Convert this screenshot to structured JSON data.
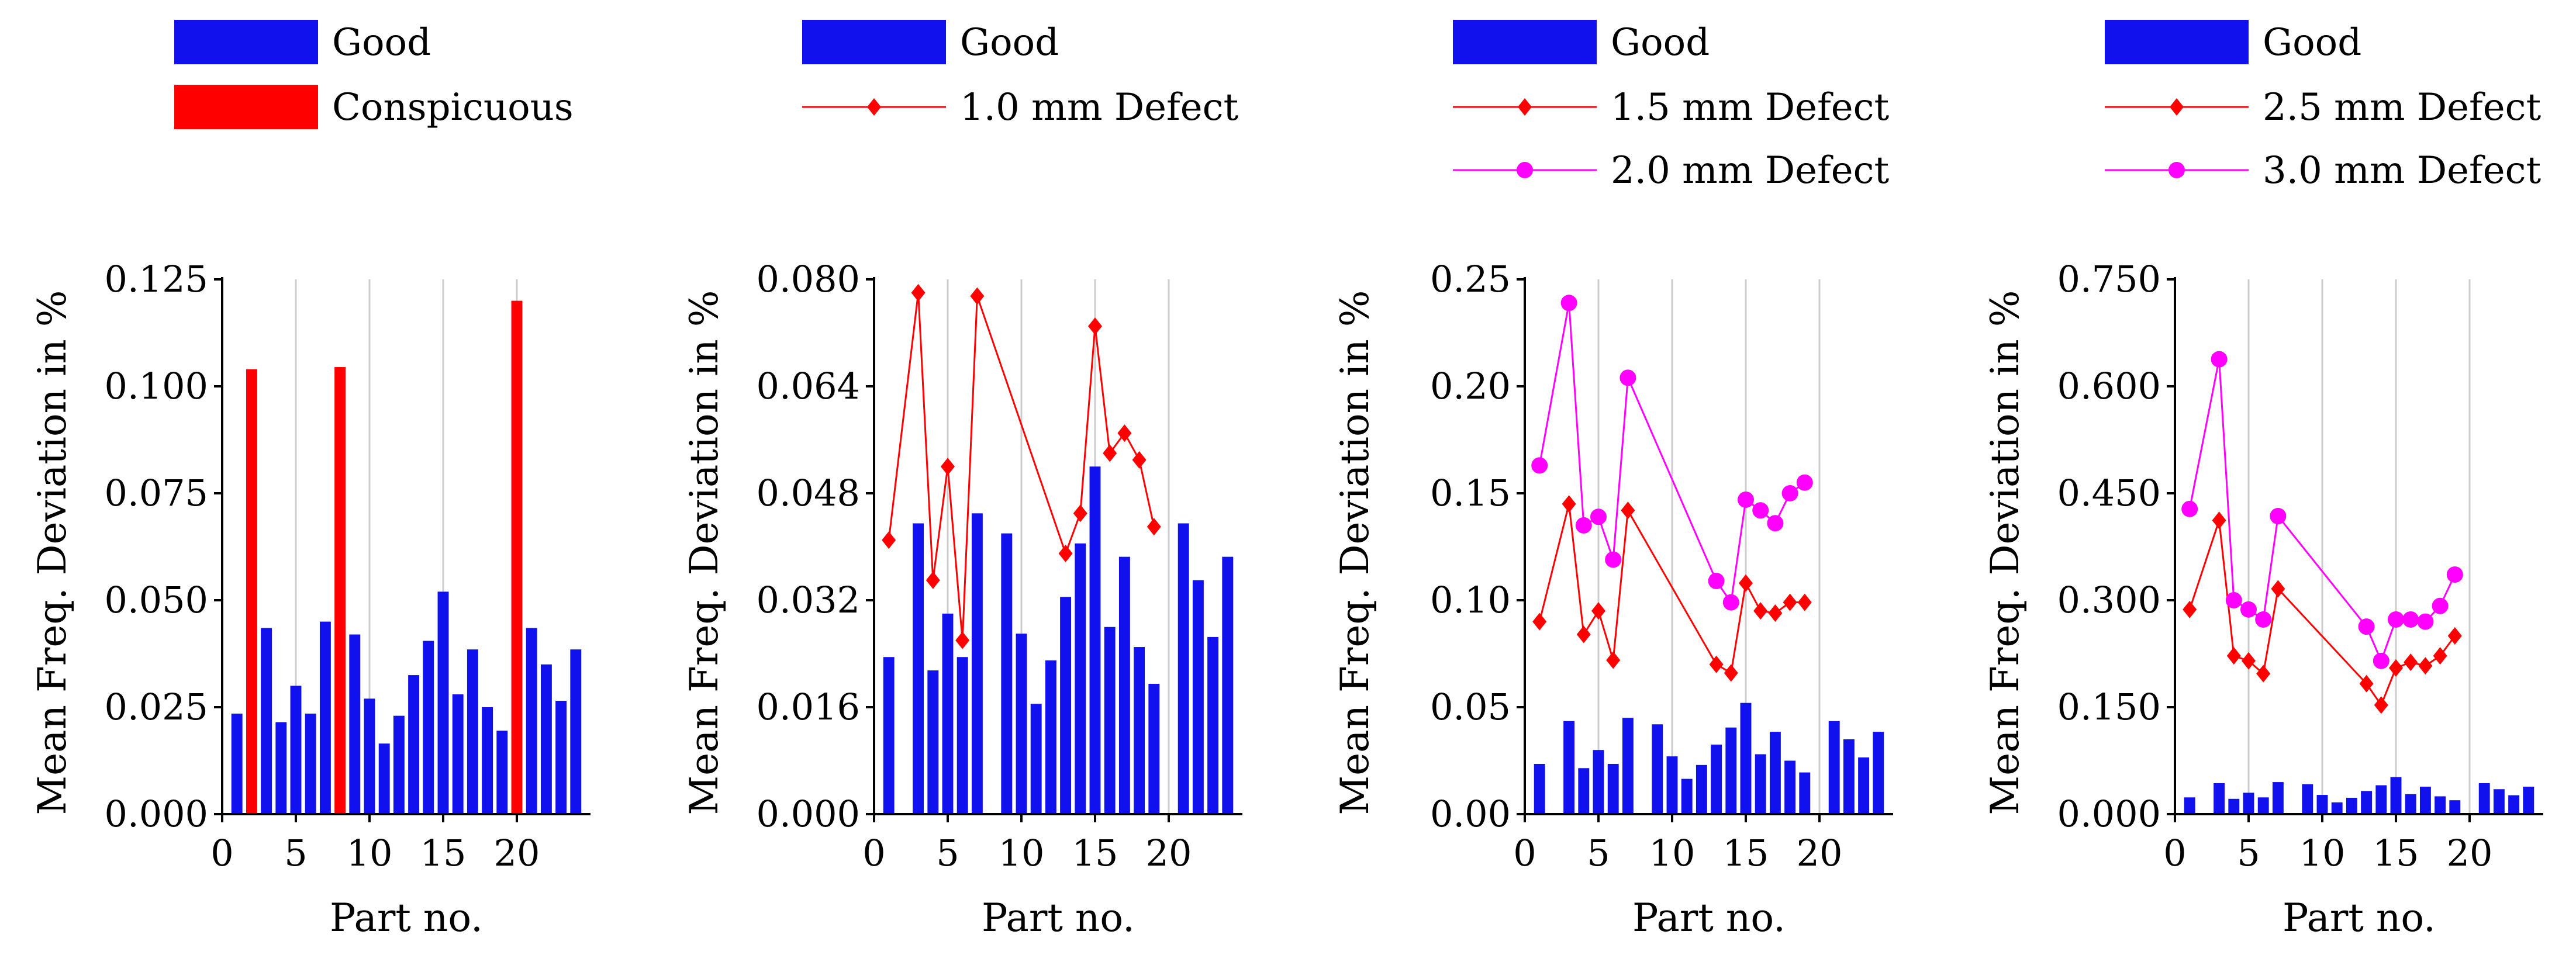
{
  "colors": {
    "good": "#1111ee",
    "conspicuous": "#ff0000",
    "defect_small": "#ff0000",
    "defect_large": "#ff00ff",
    "grid": "#cccccc",
    "axis": "#000000"
  },
  "chart_data": [
    {
      "type": "bar",
      "title": "",
      "xlabel": "Part no.",
      "ylabel": "Mean Freq. Deviation in %",
      "xlim": [
        0,
        25
      ],
      "ylim": [
        0,
        0.125
      ],
      "xticks": [
        0,
        5,
        10,
        15,
        20
      ],
      "yticks": [
        0,
        0.025,
        0.05,
        0.075,
        0.1,
        0.125
      ],
      "ytick_labels": [
        "0.000",
        "0.025",
        "0.050",
        "0.075",
        "0.100",
        "0.125"
      ],
      "xtick_labels": [
        "0",
        "5",
        "10",
        "15",
        "20"
      ],
      "grid": "vertical",
      "legend": [
        {
          "label": "Good",
          "kind": "bar",
          "color_key": "good"
        },
        {
          "label": "Conspicuous",
          "kind": "bar",
          "color_key": "conspicuous"
        }
      ],
      "bars": [
        {
          "x": 1,
          "value": 0.0235,
          "series": "Good"
        },
        {
          "x": 2,
          "value": 0.104,
          "series": "Conspicuous"
        },
        {
          "x": 3,
          "value": 0.0435,
          "series": "Good"
        },
        {
          "x": 4,
          "value": 0.0215,
          "series": "Good"
        },
        {
          "x": 5,
          "value": 0.03,
          "series": "Good"
        },
        {
          "x": 6,
          "value": 0.0235,
          "series": "Good"
        },
        {
          "x": 7,
          "value": 0.045,
          "series": "Good"
        },
        {
          "x": 8,
          "value": 0.1045,
          "series": "Conspicuous"
        },
        {
          "x": 9,
          "value": 0.042,
          "series": "Good"
        },
        {
          "x": 10,
          "value": 0.027,
          "series": "Good"
        },
        {
          "x": 11,
          "value": 0.0165,
          "series": "Good"
        },
        {
          "x": 12,
          "value": 0.023,
          "series": "Good"
        },
        {
          "x": 13,
          "value": 0.0325,
          "series": "Good"
        },
        {
          "x": 14,
          "value": 0.0405,
          "series": "Good"
        },
        {
          "x": 15,
          "value": 0.052,
          "series": "Good"
        },
        {
          "x": 16,
          "value": 0.028,
          "series": "Good"
        },
        {
          "x": 17,
          "value": 0.0385,
          "series": "Good"
        },
        {
          "x": 18,
          "value": 0.025,
          "series": "Good"
        },
        {
          "x": 19,
          "value": 0.0195,
          "series": "Good"
        },
        {
          "x": 20,
          "value": 0.12,
          "series": "Conspicuous"
        },
        {
          "x": 21,
          "value": 0.0435,
          "series": "Good"
        },
        {
          "x": 22,
          "value": 0.035,
          "series": "Good"
        },
        {
          "x": 23,
          "value": 0.0265,
          "series": "Good"
        },
        {
          "x": 24,
          "value": 0.0385,
          "series": "Good"
        }
      ],
      "series": []
    },
    {
      "type": "bar",
      "title": "",
      "xlabel": "Part no.",
      "ylabel": "Mean Freq. Deviation in %",
      "xlim": [
        0,
        25
      ],
      "ylim": [
        0,
        0.08
      ],
      "xticks": [
        0,
        5,
        10,
        15,
        20
      ],
      "yticks": [
        0,
        0.016,
        0.032,
        0.048,
        0.064,
        0.08
      ],
      "ytick_labels": [
        "0.000",
        "0.016",
        "0.032",
        "0.048",
        "0.064",
        "0.080"
      ],
      "xtick_labels": [
        "0",
        "5",
        "10",
        "15",
        "20"
      ],
      "grid": "vertical",
      "legend": [
        {
          "label": "Good",
          "kind": "bar",
          "color_key": "good"
        },
        {
          "label": "1.0 mm Defect",
          "kind": "line-diamond",
          "color_key": "defect_small"
        }
      ],
      "bars": [
        {
          "x": 1,
          "value": 0.0235,
          "series": "Good"
        },
        {
          "x": 3,
          "value": 0.0435,
          "series": "Good"
        },
        {
          "x": 4,
          "value": 0.0215,
          "series": "Good"
        },
        {
          "x": 5,
          "value": 0.03,
          "series": "Good"
        },
        {
          "x": 6,
          "value": 0.0235,
          "series": "Good"
        },
        {
          "x": 7,
          "value": 0.045,
          "series": "Good"
        },
        {
          "x": 9,
          "value": 0.042,
          "series": "Good"
        },
        {
          "x": 10,
          "value": 0.027,
          "series": "Good"
        },
        {
          "x": 11,
          "value": 0.0165,
          "series": "Good"
        },
        {
          "x": 12,
          "value": 0.023,
          "series": "Good"
        },
        {
          "x": 13,
          "value": 0.0325,
          "series": "Good"
        },
        {
          "x": 14,
          "value": 0.0405,
          "series": "Good"
        },
        {
          "x": 15,
          "value": 0.052,
          "series": "Good"
        },
        {
          "x": 16,
          "value": 0.028,
          "series": "Good"
        },
        {
          "x": 17,
          "value": 0.0385,
          "series": "Good"
        },
        {
          "x": 18,
          "value": 0.025,
          "series": "Good"
        },
        {
          "x": 19,
          "value": 0.0195,
          "series": "Good"
        },
        {
          "x": 21,
          "value": 0.0435,
          "series": "Good"
        },
        {
          "x": 22,
          "value": 0.035,
          "series": "Good"
        },
        {
          "x": 23,
          "value": 0.0265,
          "series": "Good"
        },
        {
          "x": 24,
          "value": 0.0385,
          "series": "Good"
        }
      ],
      "series": [
        {
          "name": "1.0 mm Defect",
          "marker": "diamond",
          "color_key": "defect_small",
          "x": [
            1,
            3,
            4,
            5,
            6,
            7,
            13,
            14,
            15,
            16,
            17,
            18,
            19
          ],
          "values": [
            0.041,
            0.078,
            0.035,
            0.052,
            0.026,
            0.0775,
            0.039,
            0.045,
            0.073,
            0.054,
            0.057,
            0.053,
            0.043
          ]
        }
      ]
    },
    {
      "type": "bar",
      "title": "",
      "xlabel": "Part no.",
      "ylabel": "Mean Freq. Deviation in %",
      "xlim": [
        0,
        25
      ],
      "ylim": [
        0,
        0.25
      ],
      "xticks": [
        0,
        5,
        10,
        15,
        20
      ],
      "yticks": [
        0,
        0.05,
        0.1,
        0.15,
        0.2,
        0.25
      ],
      "ytick_labels": [
        "0.00",
        "0.05",
        "0.10",
        "0.15",
        "0.20",
        "0.25"
      ],
      "xtick_labels": [
        "0",
        "5",
        "10",
        "15",
        "20"
      ],
      "grid": "vertical",
      "legend": [
        {
          "label": "Good",
          "kind": "bar",
          "color_key": "good"
        },
        {
          "label": "1.5 mm Defect",
          "kind": "line-diamond",
          "color_key": "defect_small"
        },
        {
          "label": "2.0 mm Defect",
          "kind": "line-circle",
          "color_key": "defect_large"
        }
      ],
      "bars": [
        {
          "x": 1,
          "value": 0.0235,
          "series": "Good"
        },
        {
          "x": 3,
          "value": 0.0435,
          "series": "Good"
        },
        {
          "x": 4,
          "value": 0.0215,
          "series": "Good"
        },
        {
          "x": 5,
          "value": 0.03,
          "series": "Good"
        },
        {
          "x": 6,
          "value": 0.0235,
          "series": "Good"
        },
        {
          "x": 7,
          "value": 0.045,
          "series": "Good"
        },
        {
          "x": 9,
          "value": 0.042,
          "series": "Good"
        },
        {
          "x": 10,
          "value": 0.027,
          "series": "Good"
        },
        {
          "x": 11,
          "value": 0.0165,
          "series": "Good"
        },
        {
          "x": 12,
          "value": 0.023,
          "series": "Good"
        },
        {
          "x": 13,
          "value": 0.0325,
          "series": "Good"
        },
        {
          "x": 14,
          "value": 0.0405,
          "series": "Good"
        },
        {
          "x": 15,
          "value": 0.052,
          "series": "Good"
        },
        {
          "x": 16,
          "value": 0.028,
          "series": "Good"
        },
        {
          "x": 17,
          "value": 0.0385,
          "series": "Good"
        },
        {
          "x": 18,
          "value": 0.025,
          "series": "Good"
        },
        {
          "x": 19,
          "value": 0.0195,
          "series": "Good"
        },
        {
          "x": 21,
          "value": 0.0435,
          "series": "Good"
        },
        {
          "x": 22,
          "value": 0.035,
          "series": "Good"
        },
        {
          "x": 23,
          "value": 0.0265,
          "series": "Good"
        },
        {
          "x": 24,
          "value": 0.0385,
          "series": "Good"
        }
      ],
      "series": [
        {
          "name": "1.5 mm Defect",
          "marker": "diamond",
          "color_key": "defect_small",
          "x": [
            1,
            3,
            4,
            5,
            6,
            7,
            13,
            14,
            15,
            16,
            17,
            18,
            19
          ],
          "values": [
            0.09,
            0.145,
            0.084,
            0.095,
            0.072,
            0.142,
            0.07,
            0.066,
            0.108,
            0.095,
            0.094,
            0.099,
            0.099
          ]
        },
        {
          "name": "2.0 mm Defect",
          "marker": "circle",
          "color_key": "defect_large",
          "x": [
            1,
            3,
            4,
            5,
            6,
            7,
            13,
            14,
            15,
            16,
            17,
            18,
            19
          ],
          "values": [
            0.163,
            0.239,
            0.135,
            0.139,
            0.119,
            0.204,
            0.109,
            0.099,
            0.147,
            0.142,
            0.136,
            0.15,
            0.155
          ]
        }
      ]
    },
    {
      "type": "bar",
      "title": "",
      "xlabel": "Part no.",
      "ylabel": "Mean Freq. Deviation in %",
      "xlim": [
        0,
        25
      ],
      "ylim": [
        0,
        0.75
      ],
      "xticks": [
        0,
        5,
        10,
        15,
        20
      ],
      "yticks": [
        0,
        0.15,
        0.3,
        0.45,
        0.6,
        0.75
      ],
      "ytick_labels": [
        "0.000",
        "0.150",
        "0.300",
        "0.450",
        "0.600",
        "0.750"
      ],
      "xtick_labels": [
        "0",
        "5",
        "10",
        "15",
        "20"
      ],
      "grid": "vertical",
      "legend": [
        {
          "label": "Good",
          "kind": "bar",
          "color_key": "good"
        },
        {
          "label": "2.5 mm Defect",
          "kind": "line-diamond",
          "color_key": "defect_small"
        },
        {
          "label": "3.0 mm Defect",
          "kind": "line-circle",
          "color_key": "defect_large"
        }
      ],
      "bars": [
        {
          "x": 1,
          "value": 0.0235,
          "series": "Good"
        },
        {
          "x": 3,
          "value": 0.0435,
          "series": "Good"
        },
        {
          "x": 4,
          "value": 0.0215,
          "series": "Good"
        },
        {
          "x": 5,
          "value": 0.03,
          "series": "Good"
        },
        {
          "x": 6,
          "value": 0.0235,
          "series": "Good"
        },
        {
          "x": 7,
          "value": 0.045,
          "series": "Good"
        },
        {
          "x": 9,
          "value": 0.042,
          "series": "Good"
        },
        {
          "x": 10,
          "value": 0.027,
          "series": "Good"
        },
        {
          "x": 11,
          "value": 0.0165,
          "series": "Good"
        },
        {
          "x": 12,
          "value": 0.023,
          "series": "Good"
        },
        {
          "x": 13,
          "value": 0.0325,
          "series": "Good"
        },
        {
          "x": 14,
          "value": 0.0405,
          "series": "Good"
        },
        {
          "x": 15,
          "value": 0.052,
          "series": "Good"
        },
        {
          "x": 16,
          "value": 0.028,
          "series": "Good"
        },
        {
          "x": 17,
          "value": 0.0385,
          "series": "Good"
        },
        {
          "x": 18,
          "value": 0.025,
          "series": "Good"
        },
        {
          "x": 19,
          "value": 0.0195,
          "series": "Good"
        },
        {
          "x": 21,
          "value": 0.0435,
          "series": "Good"
        },
        {
          "x": 22,
          "value": 0.035,
          "series": "Good"
        },
        {
          "x": 23,
          "value": 0.0265,
          "series": "Good"
        },
        {
          "x": 24,
          "value": 0.0385,
          "series": "Good"
        }
      ],
      "series": [
        {
          "name": "2.5 mm Defect",
          "marker": "diamond",
          "color_key": "defect_small",
          "x": [
            1,
            3,
            4,
            5,
            6,
            7,
            13,
            14,
            15,
            16,
            17,
            18,
            19
          ],
          "values": [
            0.287,
            0.412,
            0.222,
            0.215,
            0.197,
            0.316,
            0.183,
            0.153,
            0.205,
            0.213,
            0.208,
            0.222,
            0.25
          ]
        },
        {
          "name": "3.0 mm Defect",
          "marker": "circle",
          "color_key": "defect_large",
          "x": [
            1,
            3,
            4,
            5,
            6,
            7,
            13,
            14,
            15,
            16,
            17,
            18,
            19
          ],
          "values": [
            0.428,
            0.638,
            0.3,
            0.287,
            0.273,
            0.418,
            0.263,
            0.215,
            0.273,
            0.273,
            0.27,
            0.292,
            0.336
          ]
        }
      ]
    }
  ]
}
